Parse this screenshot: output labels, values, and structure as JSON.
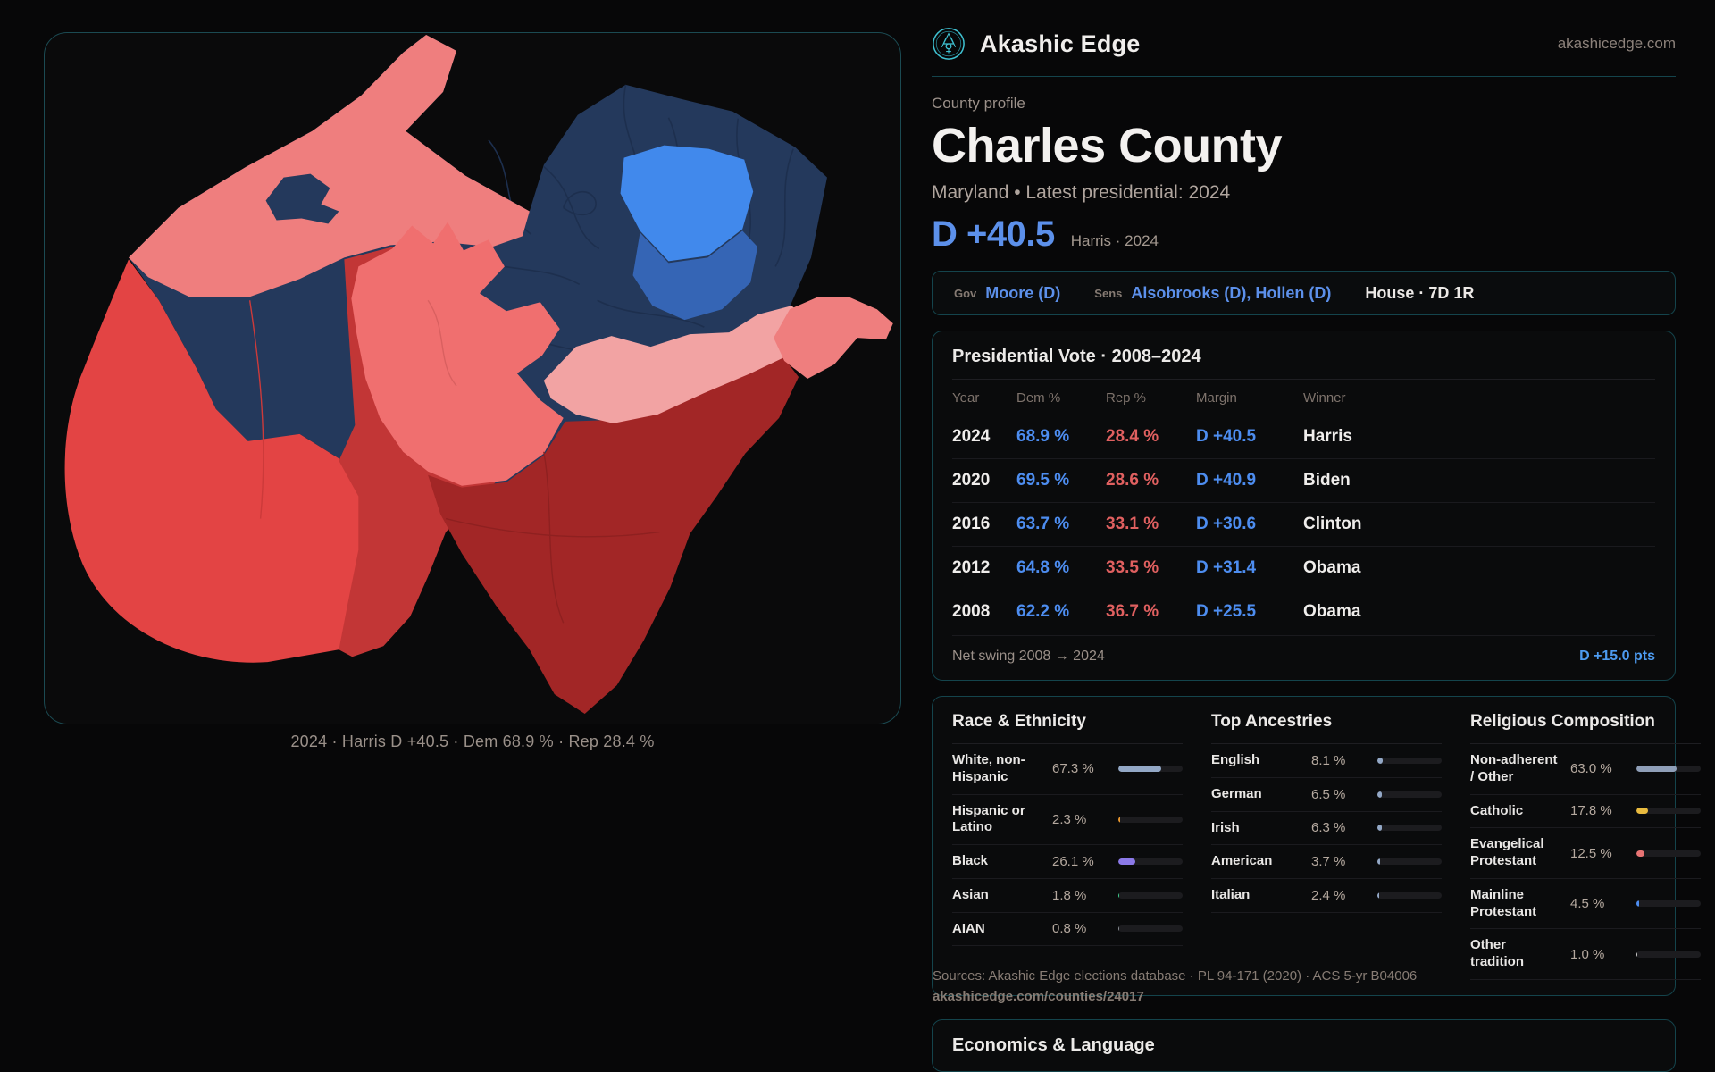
{
  "brand": {
    "name": "Akashic Edge",
    "site_link": "akashicedge.com"
  },
  "header": {
    "eyebrow": "County profile",
    "title": "Charles County",
    "subtitle": "Maryland • Latest presidential: 2024",
    "headline_margin": "D +40.5",
    "headline_context": "Harris · 2024"
  },
  "officials": {
    "gov_label": "Gov",
    "gov_value": "Moore (D)",
    "sens_label": "Sens",
    "sens_value": "Alsobrooks (D), Hollen (D)",
    "house_value": "House · 7D 1R"
  },
  "presidential": {
    "title": "Presidential Vote · 2008–2024",
    "columns": [
      "Year",
      "Dem %",
      "Rep %",
      "Margin",
      "Winner"
    ],
    "rows": [
      {
        "year": "2024",
        "dem": "68.9 %",
        "rep": "28.4 %",
        "margin": "D +40.5",
        "winner": "Harris"
      },
      {
        "year": "2020",
        "dem": "69.5 %",
        "rep": "28.6 %",
        "margin": "D +40.9",
        "winner": "Biden"
      },
      {
        "year": "2016",
        "dem": "63.7 %",
        "rep": "33.1 %",
        "margin": "D +30.6",
        "winner": "Clinton"
      },
      {
        "year": "2012",
        "dem": "64.8 %",
        "rep": "33.5 %",
        "margin": "D +31.4",
        "winner": "Obama"
      },
      {
        "year": "2008",
        "dem": "62.2 %",
        "rep": "36.7 %",
        "margin": "D +25.5",
        "winner": "Obama"
      }
    ],
    "net_swing_label": "Net swing 2008 → 2024",
    "net_swing_value": "D +15.0 pts"
  },
  "demographics": {
    "race": {
      "title": "Race & Ethnicity",
      "rows": [
        {
          "label": "White, non-Hispanic",
          "value": "67.3 %",
          "pct": 67.3,
          "color": "#93a8c6"
        },
        {
          "label": "Hispanic or Latino",
          "value": "2.3 %",
          "pct": 2.3,
          "color": "#e8962e"
        },
        {
          "label": "Black",
          "value": "26.1 %",
          "pct": 26.1,
          "color": "#8b79e8"
        },
        {
          "label": "Asian",
          "value": "1.8 %",
          "pct": 1.8,
          "color": "#3ecf8e"
        },
        {
          "label": "AIAN",
          "value": "0.8 %",
          "pct": 0.8,
          "color": "#8a8f96"
        }
      ]
    },
    "ancestries": {
      "title": "Top Ancestries",
      "rows": [
        {
          "label": "English",
          "value": "8.1 %",
          "pct": 8.1,
          "color": "#93a8c6"
        },
        {
          "label": "German",
          "value": "6.5 %",
          "pct": 6.5,
          "color": "#93a8c6"
        },
        {
          "label": "Irish",
          "value": "6.3 %",
          "pct": 6.3,
          "color": "#93a8c6"
        },
        {
          "label": "American",
          "value": "3.7 %",
          "pct": 3.7,
          "color": "#93a8c6"
        },
        {
          "label": "Italian",
          "value": "2.4 %",
          "pct": 2.4,
          "color": "#93a8c6"
        }
      ]
    },
    "religion": {
      "title": "Religious Composition",
      "rows": [
        {
          "label": "Non-adherent / Other",
          "value": "63.0 %",
          "pct": 63.0,
          "color": "#8f9fb8"
        },
        {
          "label": "Catholic",
          "value": "17.8 %",
          "pct": 17.8,
          "color": "#e9bb3f"
        },
        {
          "label": "Evangelical Protestant",
          "value": "12.5 %",
          "pct": 12.5,
          "color": "#e87474"
        },
        {
          "label": "Mainline Protestant",
          "value": "4.5 %",
          "pct": 4.5,
          "color": "#4d8df0"
        },
        {
          "label": "Other tradition",
          "value": "1.0 %",
          "pct": 1.0,
          "color": "#cfcfcf"
        }
      ]
    }
  },
  "sources": {
    "line1": "Sources: Akashic Edge elections database · PL 94-171 (2020) · ACS 5-yr B04006",
    "line2": "akashicedge.com/counties/24017"
  },
  "economics": {
    "title": "Economics & Language"
  },
  "map": {
    "caption": "2024 · Harris D +40.5 · Dem 68.9 % · Rep 28.4 %",
    "palette": {
      "navy": "#24395c",
      "bright_blue": "#4189ec",
      "medium_blue": "#3565b5",
      "pink": "#ef7e7e",
      "light_pink": "#f2a3a3",
      "salmon": "#f06f6f",
      "red": "#e34444",
      "dark_red": "#c23636",
      "deep_red": "#a22626"
    },
    "accent_teal": "#3fc1d1",
    "accent_blue": "#5c90ea",
    "accent_red": "#e06060"
  }
}
